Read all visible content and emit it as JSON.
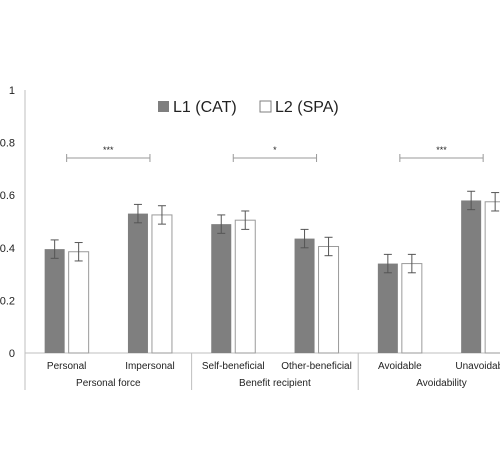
{
  "chart_data": {
    "type": "bar",
    "title": "",
    "xlabel": "",
    "ylabel": "",
    "ylim": [
      0,
      1
    ],
    "yticks": [
      "0",
      "0.2",
      "0.4",
      "0.6",
      "0.8",
      "1"
    ],
    "grid": false,
    "legend_position": "top-center",
    "categories": [
      "Personal",
      "Impersonal",
      "Self-beneficial",
      "Other-beneficial",
      "Avoidable",
      "Unavoidable"
    ],
    "groups": [
      {
        "label": "Personal force",
        "categories": [
          "Personal",
          "Impersonal"
        ],
        "significance": "***"
      },
      {
        "label": "Benefit recipient",
        "categories": [
          "Self-beneficial",
          "Other-beneficial"
        ],
        "significance": "*"
      },
      {
        "label": "Avoidability",
        "categories": [
          "Avoidable",
          "Unavoidable"
        ],
        "significance": "***"
      }
    ],
    "series": [
      {
        "name": "L1 (CAT)",
        "color": "#7f7f7f",
        "values": [
          0.395,
          0.53,
          0.49,
          0.435,
          0.34,
          0.58
        ],
        "errors": [
          0.035,
          0.035,
          0.035,
          0.035,
          0.035,
          0.035
        ]
      },
      {
        "name": "L2 (SPA)",
        "color": "#ffffff",
        "values": [
          0.385,
          0.525,
          0.505,
          0.405,
          0.34,
          0.575
        ],
        "errors": [
          0.035,
          0.035,
          0.035,
          0.035,
          0.035,
          0.035
        ]
      }
    ]
  }
}
